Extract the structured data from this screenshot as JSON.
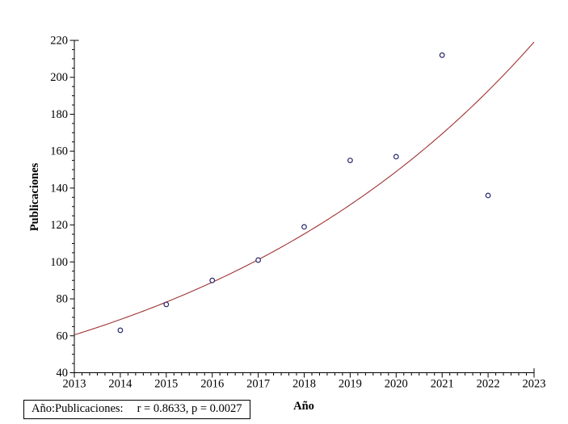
{
  "chart_data": {
    "type": "scatter",
    "title": "",
    "xlabel": "Año",
    "ylabel": "Publicaciones",
    "x": [
      2014,
      2015,
      2016,
      2017,
      2018,
      2019,
      2020,
      2021,
      2022
    ],
    "y": [
      63,
      77,
      90,
      101,
      119,
      155,
      157,
      212,
      136
    ],
    "xlim": [
      2013,
      2023
    ],
    "ylim": [
      40,
      220
    ],
    "x_tick_labels": [
      "2013",
      "2014",
      "2015",
      "2016",
      "2017",
      "2018",
      "2019",
      "2020",
      "2021",
      "2022",
      "2023"
    ],
    "y_tick_labels": [
      "40",
      "60",
      "80",
      "100",
      "120",
      "140",
      "160",
      "180",
      "200",
      "220"
    ],
    "x_minor_divisions": 6,
    "y_minor_step": 5,
    "grid": "off",
    "legend": "none",
    "fit_curve": {
      "type": "exponential",
      "a": 60.5,
      "b": 0.1287,
      "x_start": 2013,
      "x_end": 2023
    },
    "colors": {
      "point_stroke": "#28286e",
      "fit_line": "#a03232",
      "axis": "#000000"
    }
  },
  "caption": {
    "label": "Año:Publicaciones:",
    "stats": "r = 0.8633, p = 0.0027"
  }
}
